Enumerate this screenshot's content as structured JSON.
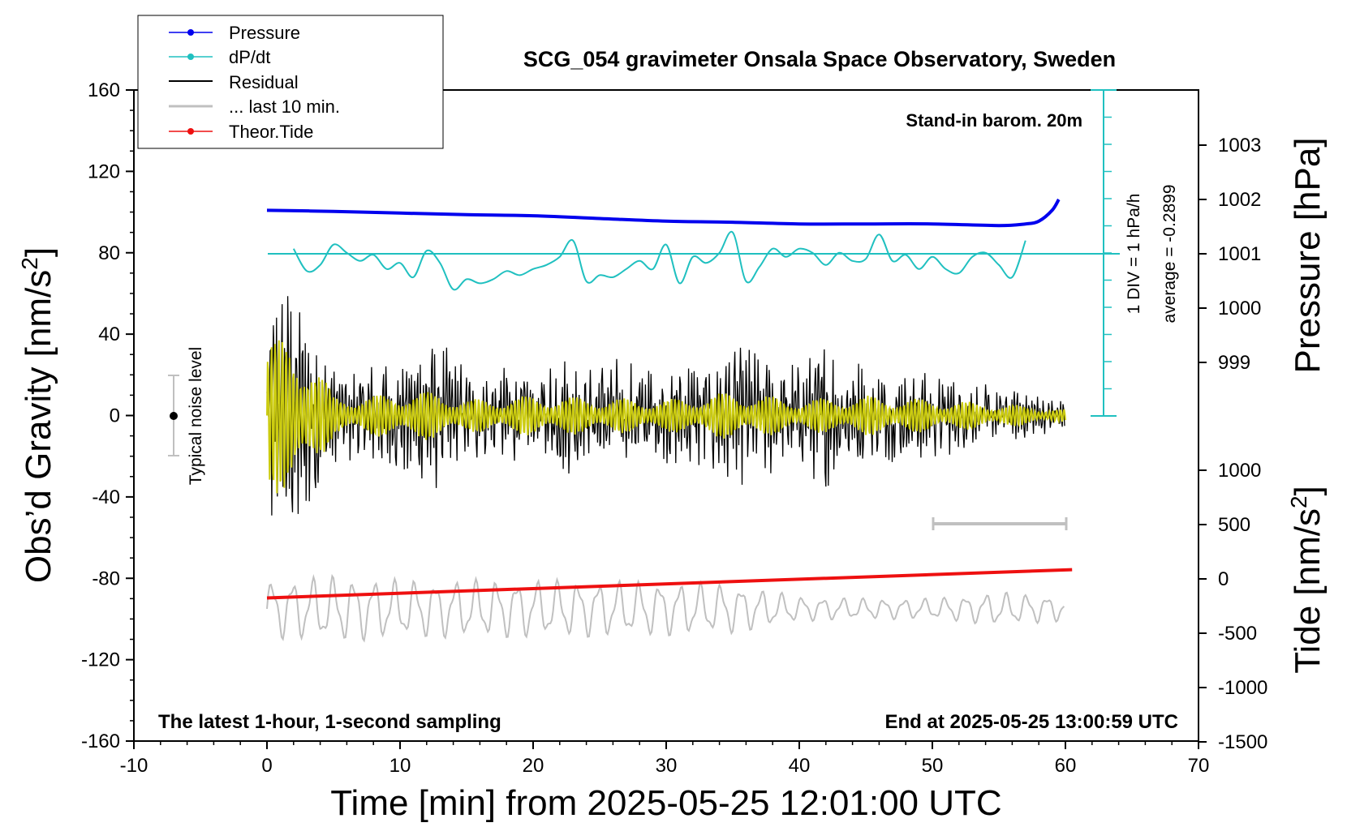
{
  "title": "SCG_054 gravimeter Onsala Space Observatory, Sweden",
  "legend": {
    "pressure": "Pressure",
    "dpdt": "dP/dt",
    "residual": "Residual",
    "last10": "... last 10 min.",
    "theor_tide": "Theor.Tide"
  },
  "annotations": {
    "standin": "Stand-in barom. 20m",
    "div": "1 DIV = 1 hPa/h",
    "average": "average = -0.2899",
    "noise": "Typical noise level",
    "latest": "The latest 1-hour, 1-second sampling",
    "end": "End at 2025-05-25 13:00:59 UTC"
  },
  "axes": {
    "xlabel": "Time [min] from 2025-05-25 12:01:00 UTC",
    "ylabel_left": "Obs’d Gravity [nm/s",
    "ylabel_left_sup": "2",
    "ylabel_left_end": "]",
    "ylabel_right_pressure": "Pressure [hPa]",
    "ylabel_right_tide": "Tide [nm/s",
    "ylabel_right_tide_sup": "2",
    "ylabel_right_tide_end": "]",
    "x_ticks": [
      "-10",
      "0",
      "10",
      "20",
      "30",
      "40",
      "50",
      "60",
      "70"
    ],
    "y_left_ticks": [
      "160",
      "120",
      "80",
      "40",
      "0",
      "-40",
      "-80",
      "-120",
      "-160"
    ],
    "y_pressure_ticks": [
      "1003",
      "1002",
      "1001",
      "1000",
      "999"
    ],
    "y_tide_ticks": [
      "1000",
      "500",
      "0",
      "-500",
      "-1000",
      "-1500"
    ]
  },
  "colors": {
    "pressure": "#0000ee",
    "dpdt": "#20c0c0",
    "residual": "#000000",
    "last10": "#c0c0c0",
    "theor_tide": "#ee1010",
    "yellow": "#cccc10"
  },
  "chart_data": {
    "type": "line",
    "xlim": [
      -10,
      70
    ],
    "ylim": [
      -160,
      160
    ],
    "pressure_ylim_approx": [
      997.2,
      1003.5
    ],
    "tide_ylim": [
      -1500,
      1000
    ],
    "series": [
      {
        "name": "Pressure",
        "axis": "pressure",
        "x": [
          0,
          5,
          10,
          15,
          20,
          25,
          30,
          35,
          40,
          45,
          50,
          55,
          57,
          58,
          59,
          59.5
        ],
        "y": [
          1001.8,
          1001.78,
          1001.75,
          1001.72,
          1001.7,
          1001.65,
          1001.6,
          1001.58,
          1001.55,
          1001.55,
          1001.55,
          1001.52,
          1001.55,
          1001.6,
          1001.8,
          1002.0
        ]
      },
      {
        "name": "dP/dt",
        "axis": "gravity_display",
        "note_axis": "1 DIV = 1 hPa/h, average = -0.2899",
        "x": [
          2,
          3,
          4,
          5,
          6,
          7,
          8,
          9,
          10,
          11,
          12,
          13,
          14,
          15,
          16,
          17,
          18,
          19,
          20,
          21,
          22,
          23,
          24,
          25,
          26,
          27,
          28,
          29,
          30,
          31,
          32,
          33,
          34,
          35,
          36,
          37,
          38,
          39,
          40,
          41,
          42,
          43,
          44,
          45,
          46,
          47,
          48,
          49,
          50,
          51,
          52,
          53,
          54,
          55,
          56,
          57
        ],
        "y": [
          82,
          71,
          74,
          84,
          80,
          76,
          79,
          72,
          75,
          68,
          81,
          75,
          62,
          67,
          65,
          67,
          71,
          69,
          72,
          74,
          78,
          86,
          66,
          69,
          68,
          72,
          76,
          72,
          84,
          65,
          78,
          75,
          80,
          90,
          66,
          73,
          82,
          78,
          82,
          80,
          74,
          80,
          76,
          77,
          89,
          76,
          79,
          72,
          78,
          72,
          70,
          78,
          80,
          74,
          68,
          86
        ]
      },
      {
        "name": "Residual",
        "axis": "gravity",
        "envelope_x": [
          0,
          3,
          5,
          8,
          10,
          13,
          15,
          20,
          25,
          30,
          35,
          40,
          42,
          45,
          50,
          55,
          60
        ],
        "envelope_amp": [
          55,
          55,
          20,
          22,
          28,
          32,
          20,
          22,
          28,
          20,
          30,
          22,
          32,
          22,
          18,
          12,
          6
        ]
      },
      {
        "name": "Residual (filtered, yellow)",
        "axis": "gravity",
        "envelope_x": [
          0,
          3,
          5,
          8,
          10,
          13,
          15,
          20,
          25,
          30,
          35,
          40,
          45,
          50,
          55,
          60
        ],
        "envelope_amp": [
          40,
          35,
          10,
          10,
          12,
          12,
          8,
          10,
          9,
          8,
          12,
          8,
          10,
          8,
          6,
          3
        ]
      },
      {
        "name": "... last 10 min.",
        "axis": "gravity",
        "offset": -95,
        "envelope_x": [
          0,
          5,
          10,
          20,
          30,
          35,
          40,
          45,
          50,
          55,
          60
        ],
        "envelope_amp": [
          14,
          16,
          14,
          14,
          13,
          12,
          6,
          5,
          5,
          8,
          6
        ]
      },
      {
        "name": "Theor.Tide",
        "axis": "tide",
        "x": [
          0,
          60.5
        ],
        "y": [
          -175,
          85
        ]
      }
    ],
    "ten_min_bar_x": [
      50,
      60
    ]
  }
}
